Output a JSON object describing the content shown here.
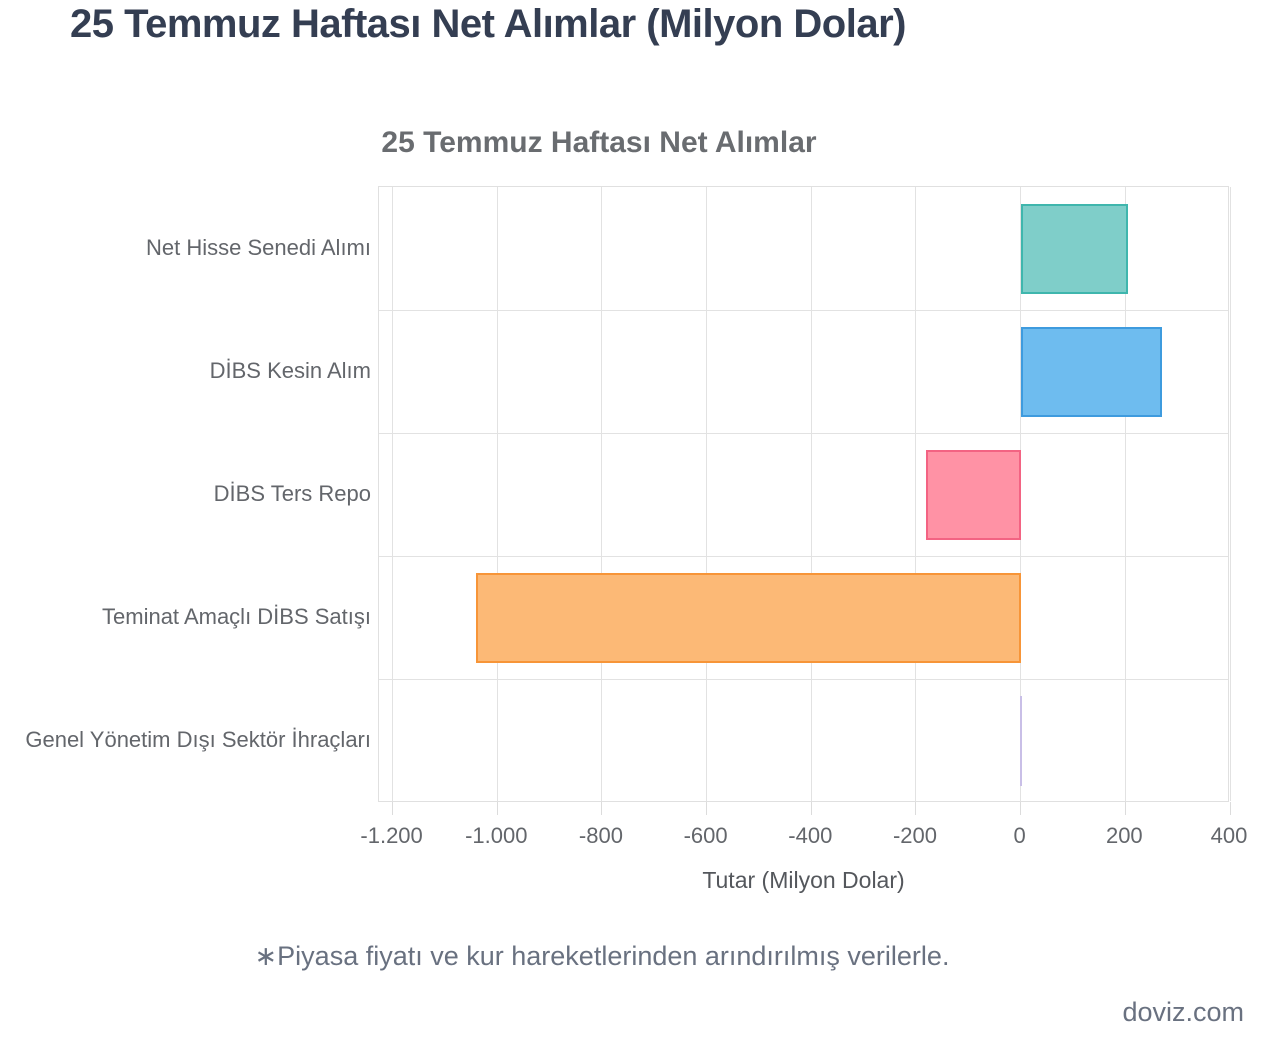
{
  "page_title": "25 Temmuz Haftası Net Alımlar (Milyon Dolar)",
  "footnote": "∗Piyasa fiyatı ve kur hareketlerinden arındırılmış verilerle.",
  "watermark": "doviz.com",
  "colors": {
    "page_title": "#343e52",
    "chart_title": "#696c70",
    "axis_text": "#63666b",
    "gridline": "#e2e2e2",
    "footnote": "#697180"
  },
  "chart_data": {
    "type": "bar",
    "orientation": "horizontal",
    "title": "25 Temmuz Haftası Net Alımlar",
    "xlabel": "Tutar (Milyon Dolar)",
    "ylabel": "",
    "grid": true,
    "legend": "none",
    "xlim": [
      -1226,
      400
    ],
    "xticks": [
      -1200,
      -1000,
      -800,
      -600,
      -400,
      -200,
      0,
      200,
      400
    ],
    "xtick_labels": [
      "-1.200",
      "-1.000",
      "-800",
      "-600",
      "-400",
      "-200",
      "0",
      "200",
      "400"
    ],
    "categories": [
      "Net Hisse Senedi Alımı",
      "DİBS Kesin Alım",
      "DİBS Ters Repo",
      "Teminat Amaçlı DİBS Satışı",
      "Genel Yönetim Dışı Sektör İhraçları"
    ],
    "values": [
      205,
      270,
      -180,
      -1040,
      0
    ],
    "bar_styles": [
      {
        "fill": "#7fcec9",
        "border": "#3fb6ad"
      },
      {
        "fill": "#6ebcef",
        "border": "#3e9bde"
      },
      {
        "fill": "#ff92a5",
        "border": "#f36383"
      },
      {
        "fill": "#fcb976",
        "border": "#f79538"
      },
      {
        "fill": "#c9bfe7",
        "border": "#b9ade0"
      }
    ]
  }
}
